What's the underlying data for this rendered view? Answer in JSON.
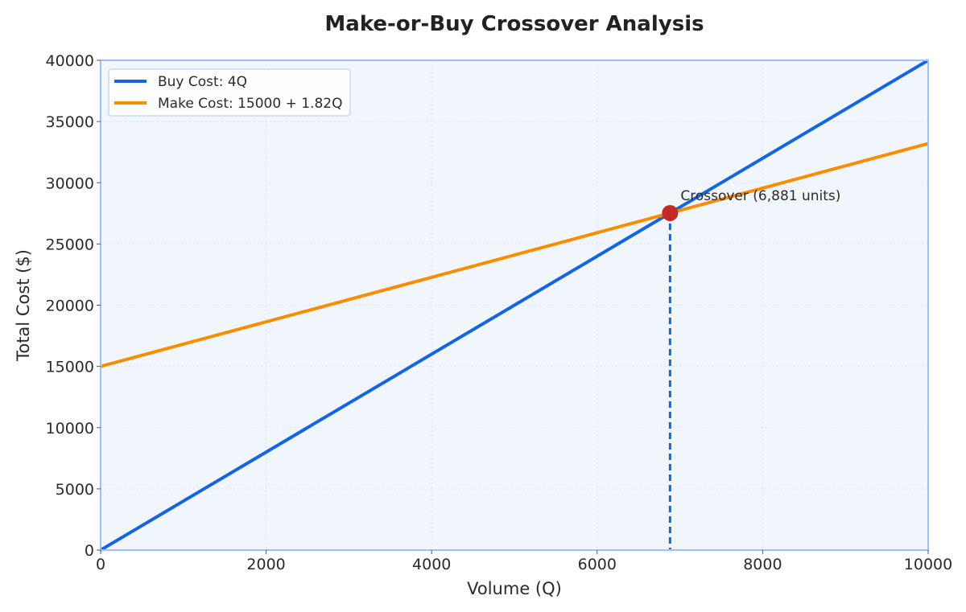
{
  "chart_data": {
    "type": "line",
    "title": "Make-or-Buy Crossover Analysis",
    "xlabel": "Volume (Q)",
    "ylabel": "Total Cost ($)",
    "xlim": [
      0,
      10000
    ],
    "ylim": [
      0,
      40000
    ],
    "x_ticks": [
      0,
      2000,
      4000,
      6000,
      8000,
      10000
    ],
    "y_ticks": [
      0,
      5000,
      10000,
      15000,
      20000,
      25000,
      30000,
      35000,
      40000
    ],
    "grid": true,
    "legend_position": "top-left",
    "series": [
      {
        "name": "Buy Cost: 4Q",
        "color": "#1565e0",
        "x": [
          0,
          10000
        ],
        "y": [
          0,
          40000
        ]
      },
      {
        "name": "Make Cost: 15000 + 1.82Q",
        "color": "#fb8c00",
        "x": [
          0,
          10000
        ],
        "y": [
          15000,
          33200
        ]
      }
    ],
    "crossover": {
      "x": 6881,
      "y": 27523,
      "label": "Crossover (6,881 units)",
      "marker_color": "#c62828",
      "dropline_color": "#1565e0"
    },
    "colors": {
      "plot_background": "#f1f6fd",
      "frame": "#9fc0f2",
      "grid": "#d7e3f4"
    }
  }
}
